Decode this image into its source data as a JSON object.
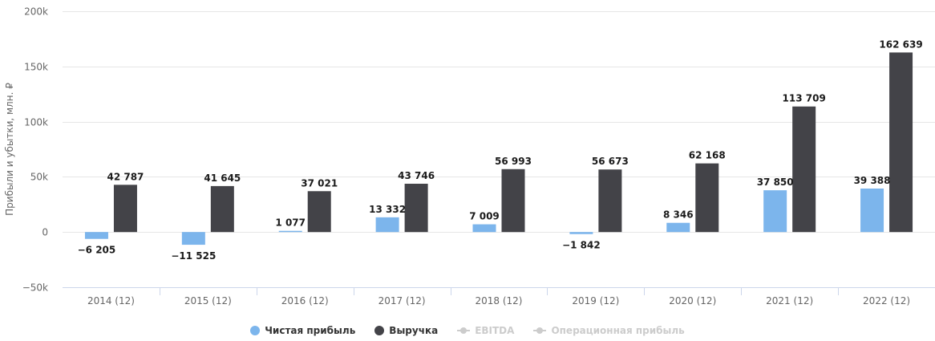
{
  "chart_data": {
    "type": "bar",
    "categories": [
      "2014 (12)",
      "2015 (12)",
      "2016 (12)",
      "2017 (12)",
      "2018 (12)",
      "2019 (12)",
      "2020 (12)",
      "2021 (12)",
      "2022 (12)"
    ],
    "series": [
      {
        "name": "Чистая прибыль",
        "color": "#7cb5ec",
        "values": [
          -6205,
          -11525,
          1077,
          13332,
          7009,
          -1842,
          8346,
          37850,
          39388
        ],
        "labels": [
          "−6 205",
          "−11 525",
          "1 077",
          "13 332",
          "7 009",
          "−1 842",
          "8 346",
          "37 850",
          "39 388"
        ]
      },
      {
        "name": "Выручка",
        "color": "#434348",
        "values": [
          42787,
          41645,
          37021,
          43746,
          56993,
          56673,
          62168,
          113709,
          162639
        ],
        "labels": [
          "42 787",
          "41 645",
          "37 021",
          "43 746",
          "56 993",
          "56 673",
          "62 168",
          "113 709",
          "162 639"
        ]
      }
    ],
    "ylabel": "Прибыли и убытки, млн. ₽",
    "ylim": [
      -50000,
      200000
    ],
    "yticks": [
      {
        "value": -50000,
        "label": "−50k"
      },
      {
        "value": 0,
        "label": "0"
      },
      {
        "value": 50000,
        "label": "50k"
      },
      {
        "value": 100000,
        "label": "100k"
      },
      {
        "value": 150000,
        "label": "150k"
      },
      {
        "value": 200000,
        "label": "200k"
      }
    ],
    "grid": true,
    "legend_position": "bottom-center"
  },
  "legend": {
    "items": [
      {
        "label": "Чистая прибыль",
        "color": "#7cb5ec",
        "active": true,
        "marker": "dot"
      },
      {
        "label": "Выручка",
        "color": "#434348",
        "active": true,
        "marker": "dot"
      },
      {
        "label": "EBITDA",
        "color": "#cccccc",
        "active": false,
        "marker": "line"
      },
      {
        "label": "Операционная прибыль",
        "color": "#cccccc",
        "active": false,
        "marker": "line"
      }
    ]
  }
}
